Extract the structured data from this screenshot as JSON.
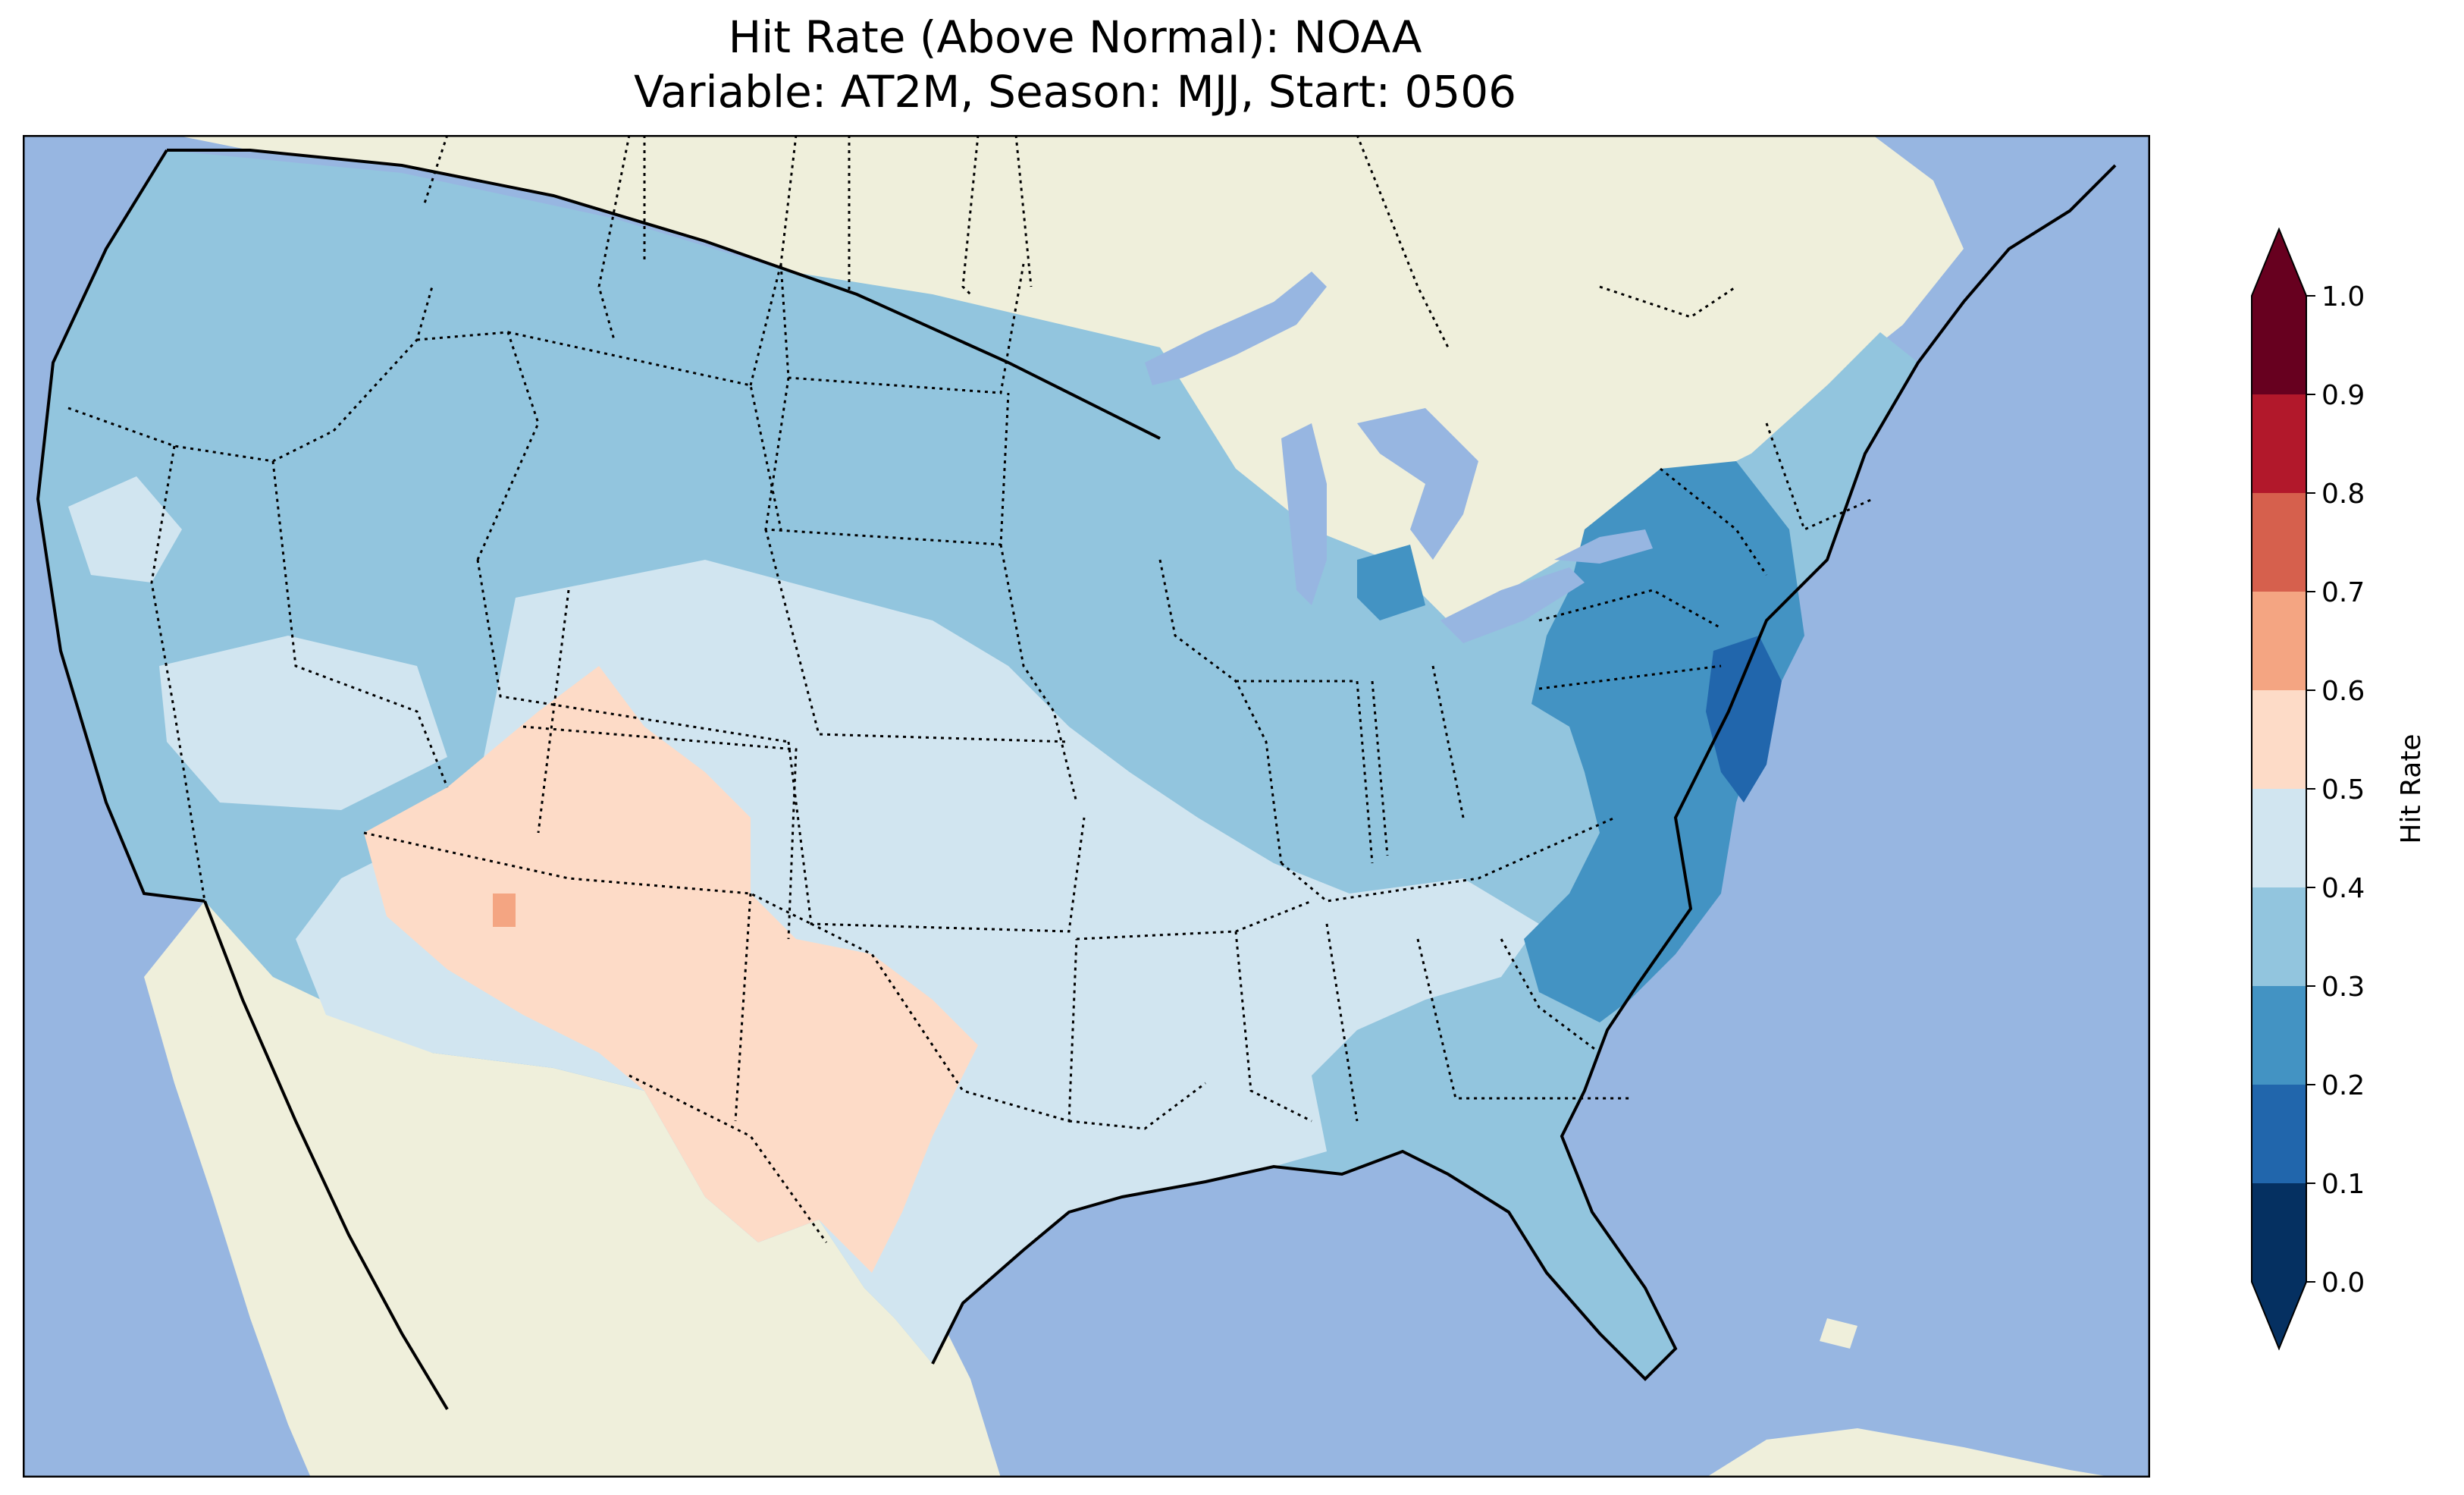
{
  "title_line1": "Hit Rate (Above Normal): NOAA",
  "title_line2": "Variable: AT2M, Season: MJJ, Start: 0506",
  "colorbar": {
    "label": "Hit Rate",
    "ticks": [
      "0.0",
      "0.1",
      "0.2",
      "0.3",
      "0.4",
      "0.5",
      "0.6",
      "0.7",
      "0.8",
      "0.9",
      "1.0"
    ],
    "colors": [
      "#053061",
      "#2166ac",
      "#4393c3",
      "#92c5de",
      "#d1e5f0",
      "#fddbc7",
      "#f4a582",
      "#d6604d",
      "#b2182b",
      "#67001f"
    ],
    "under_color": "#053061",
    "over_color": "#67001f"
  },
  "colors": {
    "ocean": "#97b6e1",
    "land": "#efefdb",
    "lake": "#97b6e1"
  },
  "map": {
    "region": "Contiguous United States",
    "regions": [
      {
        "name": "Northeast coast (NJ/DE)",
        "hit_rate_bin": "0.1-0.2"
      },
      {
        "name": "Mid-Atlantic / NY / Carolinas",
        "hit_rate_bin": "0.2-0.3"
      },
      {
        "name": "Northern tier / Southeast / West coast",
        "hit_rate_bin": "0.3-0.4"
      },
      {
        "name": "Central Plains / South",
        "hit_rate_bin": "0.4-0.5"
      },
      {
        "name": "Southwest (AZ/NM/TX)",
        "hit_rate_bin": "0.5-0.6"
      },
      {
        "name": "Southern Utah spot",
        "hit_rate_bin": "0.6-0.7"
      }
    ]
  }
}
